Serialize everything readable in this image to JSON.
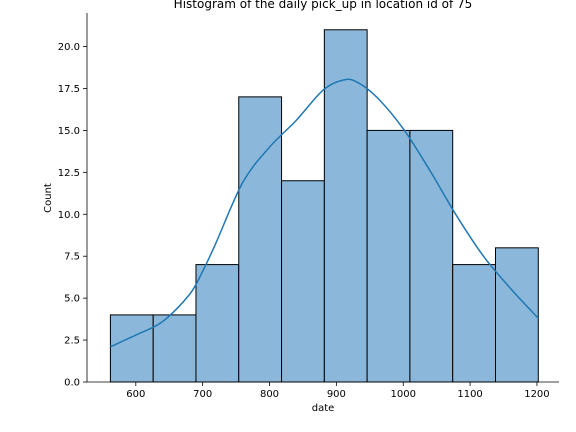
{
  "chart_data": {
    "type": "bar",
    "subtype": "histogram-with-kde",
    "title": "Histogram of the daily pick_up in location id of 75",
    "xlabel": "date",
    "ylabel": "Count",
    "xlim": [
      527,
      1233
    ],
    "ylim": [
      0,
      22
    ],
    "xticks": [
      600,
      700,
      800,
      900,
      1000,
      1100,
      1200
    ],
    "yticks": [
      0.0,
      2.5,
      5.0,
      7.5,
      10.0,
      12.5,
      15.0,
      17.5,
      20.0
    ],
    "bins": [
      {
        "x0": 562,
        "x1": 626,
        "count": 4
      },
      {
        "x0": 626,
        "x1": 690,
        "count": 4
      },
      {
        "x0": 690,
        "x1": 754,
        "count": 7
      },
      {
        "x0": 754,
        "x1": 818,
        "count": 17
      },
      {
        "x0": 818,
        "x1": 882,
        "count": 12
      },
      {
        "x0": 882,
        "x1": 946,
        "count": 21
      },
      {
        "x0": 946,
        "x1": 1010,
        "count": 15
      },
      {
        "x0": 1010,
        "x1": 1074,
        "count": 15
      },
      {
        "x0": 1074,
        "x1": 1138,
        "count": 7
      },
      {
        "x0": 1138,
        "x1": 1202,
        "count": 8
      }
    ],
    "kde": {
      "x": [
        562,
        600,
        640,
        680,
        700,
        720,
        760,
        800,
        840,
        880,
        910,
        930,
        960,
        1000,
        1040,
        1080,
        1120,
        1160,
        1202
      ],
      "y": [
        2.1,
        2.8,
        3.6,
        5.2,
        6.6,
        8.3,
        11.9,
        14.0,
        15.6,
        17.4,
        18.0,
        17.9,
        17.0,
        15.1,
        12.6,
        9.9,
        7.5,
        5.6,
        3.8
      ]
    },
    "grid": false,
    "colors": {
      "bar_fill": "#8bb8da",
      "bar_edge": "#000000",
      "kde_line": "#1f77b4"
    }
  }
}
